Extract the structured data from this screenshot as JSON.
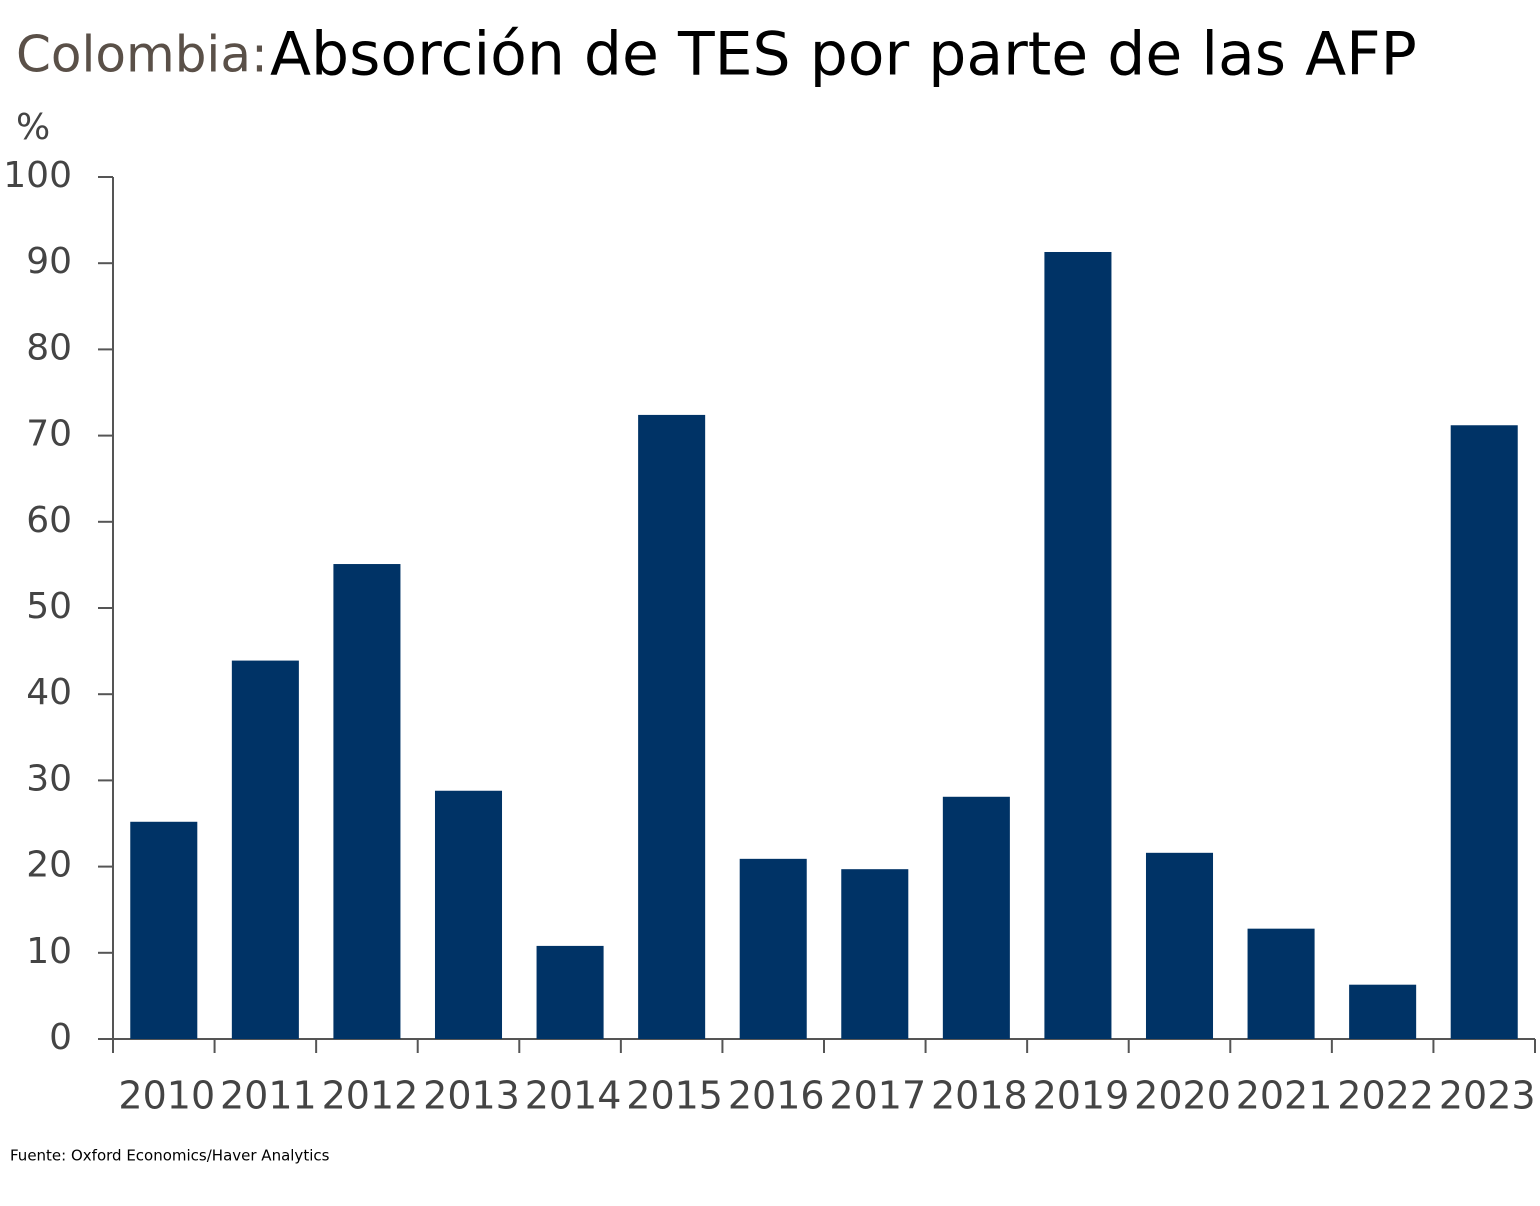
{
  "chart_data": {
    "type": "bar",
    "title_prefix": "Colombia:",
    "title": "Absorción de TES por parte de las AFP",
    "y_label": "%",
    "source": "Fuente: Oxford Economics/Haver Analytics",
    "categories": [
      "2010",
      "2011",
      "2012",
      "2013",
      "2014",
      "2015",
      "2016",
      "2017",
      "2018",
      "2019",
      "2020",
      "2021",
      "2022",
      "2023"
    ],
    "values": [
      25.2,
      43.9,
      55.1,
      28.8,
      10.8,
      72.4,
      20.9,
      19.7,
      28.1,
      91.3,
      21.6,
      12.8,
      6.3,
      71.2
    ],
    "color": "#003366",
    "ylim": [
      0,
      100
    ],
    "yticks": [
      0,
      10,
      20,
      30,
      40,
      50,
      60,
      70,
      80,
      90,
      100
    ],
    "grid": false
  }
}
